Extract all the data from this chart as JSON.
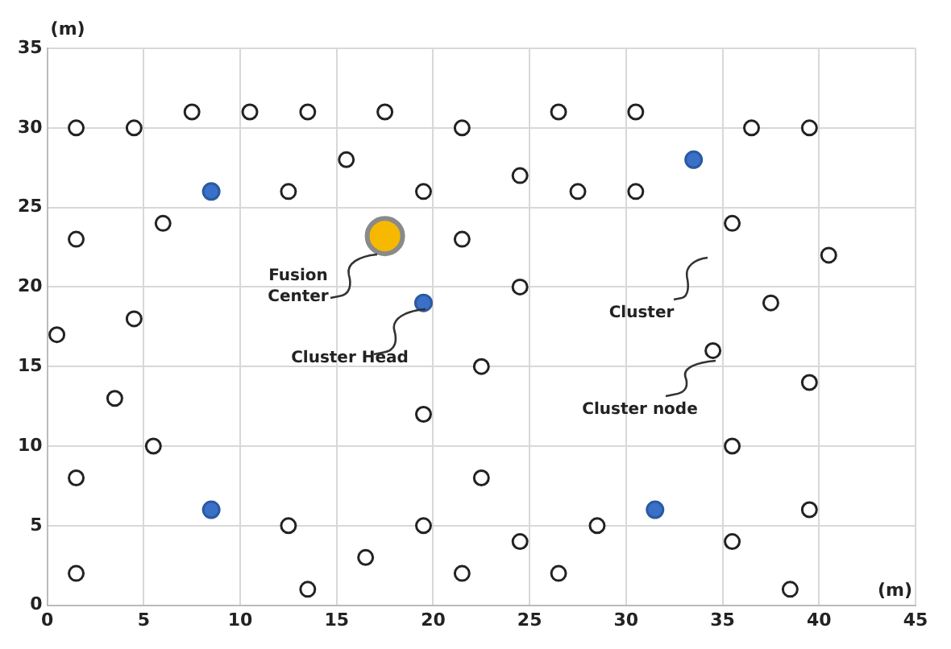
{
  "chart_data": {
    "type": "scatter",
    "xlabel": "(m)",
    "ylabel": "(m)",
    "xlim": [
      0,
      45
    ],
    "xticks": [
      0,
      5,
      10,
      15,
      20,
      25,
      30,
      35,
      40,
      45
    ],
    "ylim": [
      0,
      35
    ],
    "yticks": [
      0,
      5,
      10,
      15,
      20,
      25,
      30,
      35
    ],
    "grid": true,
    "legend": false,
    "marker": "circle",
    "series": [
      {
        "color": "#222222",
        "x": [
          1.5,
          4.5,
          7.5,
          10.5,
          13.5,
          17.5,
          21.5,
          26.5,
          30.5,
          36.5,
          39.5,
          15.5,
          12.5,
          19.5,
          24.5,
          27.5,
          30.5,
          1.5,
          6,
          21.5,
          35.5,
          40.5,
          0.5,
          4.5,
          24.5,
          37.5,
          22.5,
          34.5,
          39.5,
          3.5,
          5.5,
          19.5,
          35.5,
          1.5,
          22.5,
          12.5,
          19.5,
          28.5,
          39.5,
          24.5,
          35.5,
          16.5,
          1.5,
          21.5,
          26.5,
          13.5,
          38.5
        ],
        "values": [
          30,
          30,
          31,
          31,
          31,
          31,
          30,
          31,
          31,
          30,
          30,
          28,
          26,
          26,
          27,
          26,
          26,
          23,
          24,
          23,
          24,
          22,
          17,
          18,
          20,
          19,
          15,
          16,
          14,
          13,
          10,
          12,
          10,
          8,
          8,
          5,
          5,
          5,
          6,
          4,
          4,
          3,
          2,
          2,
          2,
          1,
          1
        ]
      },
      {
        "color": "#3a70c8",
        "x": [
          8.5,
          33.5,
          19.5,
          8.5,
          31.5
        ],
        "values": [
          26,
          28,
          19,
          6,
          6
        ]
      },
      {
        "color": "#f7b900",
        "x": [
          17.5
        ],
        "values": [
          23.2
        ]
      }
    ],
    "annotations": [
      "Fusion Center",
      "Cluster Head",
      "Cluster",
      "Cluster node"
    ]
  }
}
